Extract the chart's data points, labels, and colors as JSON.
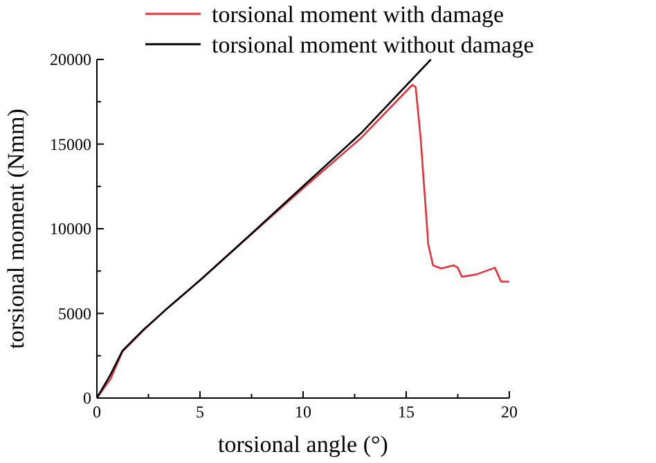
{
  "chart_data": {
    "type": "line",
    "xlabel": "torsional angle (°)",
    "ylabel": "torsional moment (Nmm)",
    "xlim": [
      0,
      20
    ],
    "ylim": [
      0,
      20000
    ],
    "xticks": [
      0,
      {
        "value": 2.5,
        "label": null
      },
      5,
      {
        "value": 7.5,
        "label": null
      },
      10,
      {
        "value": 12.5,
        "label": null
      },
      15,
      {
        "value": 17.5,
        "label": null
      },
      20
    ],
    "yticks": [
      0,
      {
        "value": 2500,
        "label": null
      },
      5000,
      {
        "value": 7500,
        "label": null
      },
      10000,
      {
        "value": 12500,
        "label": null
      },
      15000,
      {
        "value": 17500,
        "label": null
      },
      20000
    ],
    "grid": false,
    "legend": "top",
    "marker": "none",
    "line_style": "solid",
    "series": [
      {
        "name": "torsional moment with damage",
        "color": "#e8303a",
        "x": [
          0,
          0.67,
          1.24,
          2.25,
          3.37,
          5.06,
          7.42,
          10.1,
          12.8,
          15.3,
          15.46,
          15.7,
          16.07,
          16.3,
          16.7,
          17.3,
          17.5,
          17.7,
          18.4,
          19.3,
          19.6,
          20
        ],
        "values": [
          0,
          1150,
          2750,
          4000,
          5250,
          7020,
          9600,
          12500,
          15350,
          18500,
          18360,
          15350,
          9070,
          7840,
          7650,
          7840,
          7700,
          7160,
          7300,
          7700,
          6880,
          6880
        ]
      },
      {
        "name": "torsional moment without damage",
        "color": "#000000",
        "x": [
          0,
          0.67,
          1.24,
          2.25,
          3.37,
          5.06,
          7.42,
          10.1,
          12.8,
          16.2
        ],
        "values": [
          0,
          1400,
          2790,
          4020,
          5250,
          7020,
          9620,
          12620,
          15630,
          20000
        ]
      }
    ]
  }
}
